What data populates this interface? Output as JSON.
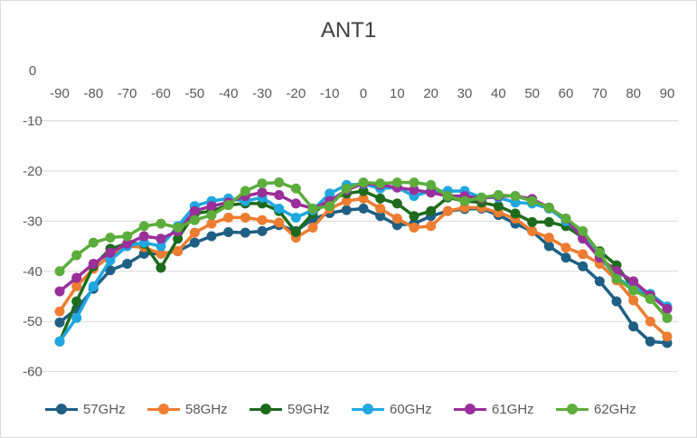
{
  "chart_data": {
    "type": "line",
    "title": "ANT1",
    "xlabel": "",
    "ylabel": "",
    "x": [
      -90,
      -85,
      -80,
      -75,
      -70,
      -65,
      -60,
      -55,
      -50,
      -45,
      -40,
      -35,
      -30,
      -25,
      -20,
      -15,
      -10,
      -5,
      0,
      5,
      10,
      15,
      20,
      25,
      30,
      35,
      40,
      45,
      50,
      55,
      60,
      65,
      70,
      75,
      80,
      85,
      90
    ],
    "x_ticks": [
      -90,
      -80,
      -70,
      -60,
      -50,
      -40,
      -30,
      -20,
      -10,
      0,
      10,
      20,
      30,
      40,
      50,
      60,
      70,
      80,
      90
    ],
    "y_ticks": [
      0,
      -10,
      -20,
      -30,
      -40,
      -50,
      -60
    ],
    "ylim": [
      -68,
      0
    ],
    "xlim": [
      -90,
      90
    ],
    "grid": true,
    "legend_position": "bottom",
    "series": [
      {
        "name": "57GHz",
        "color": "#1f5f83",
        "values": [
          -50.2,
          -47.5,
          -43.5,
          -39.8,
          -38.5,
          -36.5,
          -36.5,
          -36.0,
          -34.3,
          -33.0,
          -32.2,
          -32.3,
          -32.0,
          -30.8,
          -32.0,
          -29.6,
          -28.4,
          -27.8,
          -27.5,
          -29.0,
          -30.8,
          -30.5,
          -29.0,
          -28.0,
          -27.6,
          -27.5,
          -28.8,
          -30.5,
          -32.0,
          -35.0,
          -37.3,
          -39.0,
          -42.0,
          -46.0,
          -51.0,
          -54.0,
          -54.3
        ]
      },
      {
        "name": "58GHz",
        "color": "#ed7d31",
        "values": [
          -48.0,
          -43.0,
          -39.5,
          -37.0,
          -35.0,
          -35.2,
          -36.5,
          -36.0,
          -32.3,
          -30.5,
          -29.3,
          -29.3,
          -29.8,
          -30.3,
          -33.3,
          -31.3,
          -27.5,
          -26.0,
          -25.5,
          -27.5,
          -29.5,
          -31.3,
          -31.0,
          -28.0,
          -27.3,
          -27.3,
          -28.3,
          -29.5,
          -32.0,
          -33.3,
          -35.3,
          -36.6,
          -38.5,
          -41.8,
          -45.8,
          -50.0,
          -53.0
        ]
      },
      {
        "name": "59GHz",
        "color": "#1e6b1e",
        "values": [
          -54.0,
          -46.0,
          -39.0,
          -35.5,
          -34.5,
          -34.5,
          -39.3,
          -33.5,
          -28.5,
          -28.0,
          -26.8,
          -26.5,
          -26.5,
          -28.0,
          -32.2,
          -28.5,
          -25.8,
          -24.5,
          -24.0,
          -25.5,
          -26.5,
          -29.0,
          -28.0,
          -25.3,
          -26.0,
          -26.3,
          -27.0,
          -28.5,
          -30.2,
          -30.2,
          -31.0,
          -33.3,
          -36.0,
          -38.8,
          -43.5,
          -45.5,
          -49.3
        ]
      },
      {
        "name": "60GHz",
        "color": "#1fa7e0",
        "values": [
          -54.0,
          -49.3,
          -43.0,
          -37.8,
          -35.0,
          -34.3,
          -35.0,
          -31.0,
          -27.0,
          -26.0,
          -25.5,
          -26.0,
          -25.3,
          -27.5,
          -29.3,
          -27.8,
          -24.5,
          -22.8,
          -22.6,
          -23.5,
          -23.3,
          -25.0,
          -24.0,
          -24.0,
          -24.0,
          -25.3,
          -25.3,
          -26.3,
          -26.5,
          -27.5,
          -30.0,
          -33.0,
          -37.0,
          -41.3,
          -43.3,
          -44.5,
          -47.0
        ]
      },
      {
        "name": "61GHz",
        "color": "#9a2f9a",
        "values": [
          -44.0,
          -41.3,
          -38.5,
          -36.3,
          -34.5,
          -33.0,
          -33.5,
          -32.0,
          -28.0,
          -27.0,
          -26.3,
          -25.0,
          -24.3,
          -24.8,
          -26.5,
          -27.5,
          -26.0,
          -23.8,
          -22.5,
          -22.8,
          -23.3,
          -23.8,
          -24.3,
          -25.0,
          -25.0,
          -25.5,
          -25.0,
          -25.0,
          -25.6,
          -27.3,
          -29.5,
          -33.5,
          -37.3,
          -40.0,
          -42.0,
          -44.8,
          -47.5
        ]
      },
      {
        "name": "62GHz",
        "color": "#5cad3b",
        "values": [
          -40.0,
          -36.8,
          -34.3,
          -33.3,
          -33.0,
          -31.0,
          -30.5,
          -31.3,
          -29.8,
          -28.8,
          -26.8,
          -24.0,
          -22.5,
          -22.3,
          -23.5,
          -27.5,
          -27.0,
          -23.5,
          -22.3,
          -22.5,
          -22.3,
          -22.3,
          -22.8,
          -25.0,
          -26.0,
          -25.3,
          -24.8,
          -25.0,
          -26.0,
          -27.3,
          -29.5,
          -32.0,
          -36.3,
          -41.5,
          -43.8,
          -45.5,
          -49.3
        ]
      }
    ]
  }
}
